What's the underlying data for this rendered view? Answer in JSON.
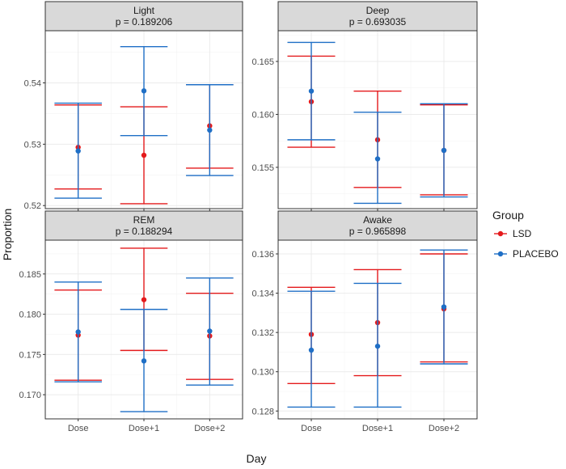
{
  "chart_data": {
    "type": "errorbar",
    "xlabel": "Day",
    "ylabel": "Proportion",
    "categories": [
      "Dose",
      "Dose+1",
      "Dose+2"
    ],
    "legend": {
      "title": "Group",
      "position": "right",
      "entries": [
        {
          "name": "LSD",
          "color": "#e41a1c"
        },
        {
          "name": "PLACEBO",
          "color": "#1f6fc6"
        }
      ]
    },
    "panels": [
      {
        "name": "Light",
        "pvalue_label": "p = 0.189206",
        "ylim": [
          0.5195,
          0.5485
        ],
        "yticks": [
          0.52,
          0.53,
          0.54
        ],
        "ytick_labels": [
          "0.52",
          "0.53",
          "0.54"
        ],
        "series": [
          {
            "name": "LSD",
            "mean": [
              0.5295,
              0.5282,
              0.533
            ],
            "lower": [
              0.5227,
              0.5203,
              0.5261
            ],
            "upper": [
              0.5364,
              0.5361,
              0.5397
            ]
          },
          {
            "name": "PLACEBO",
            "mean": [
              0.5289,
              0.5387,
              0.5323
            ],
            "lower": [
              0.5212,
              0.5314,
              0.5249
            ],
            "upper": [
              0.5367,
              0.5459,
              0.5397
            ]
          }
        ]
      },
      {
        "name": "Deep",
        "pvalue_label": "p = 0.693035",
        "ylim": [
          0.1511,
          0.1679
        ],
        "yticks": [
          0.155,
          0.16,
          0.165
        ],
        "ytick_labels": [
          "0.155",
          "0.160",
          "0.165"
        ],
        "series": [
          {
            "name": "LSD",
            "mean": [
              0.1612,
              0.1576,
              0.1566
            ],
            "lower": [
              0.1569,
              0.1531,
              0.1524
            ],
            "upper": [
              0.1655,
              0.1622,
              0.1609
            ]
          },
          {
            "name": "PLACEBO",
            "mean": [
              0.1622,
              0.1558,
              0.1566
            ],
            "lower": [
              0.1576,
              0.1516,
              0.1522
            ],
            "upper": [
              0.1668,
              0.1602,
              0.161
            ]
          }
        ]
      },
      {
        "name": "REM",
        "pvalue_label": "p = 0.188294",
        "ylim": [
          0.167,
          0.1892
        ],
        "yticks": [
          0.17,
          0.175,
          0.18,
          0.185
        ],
        "ytick_labels": [
          "0.170",
          "0.175",
          "0.180",
          "0.185"
        ],
        "series": [
          {
            "name": "LSD",
            "mean": [
              0.1774,
              0.1818,
              0.1773
            ],
            "lower": [
              0.1718,
              0.1755,
              0.1719
            ],
            "upper": [
              0.183,
              0.1882,
              0.1826
            ]
          },
          {
            "name": "PLACEBO",
            "mean": [
              0.1778,
              0.1742,
              0.1779
            ],
            "lower": [
              0.1716,
              0.1679,
              0.1712
            ],
            "upper": [
              0.184,
              0.1806,
              0.1845
            ]
          }
        ]
      },
      {
        "name": "Awake",
        "pvalue_label": "p = 0.965898",
        "ylim": [
          0.1276,
          0.1367
        ],
        "yticks": [
          0.128,
          0.13,
          0.132,
          0.134,
          0.136
        ],
        "ytick_labels": [
          "0.128",
          "0.130",
          "0.132",
          "0.134",
          "0.136"
        ],
        "series": [
          {
            "name": "LSD",
            "mean": [
              0.1319,
              0.1325,
              0.1332
            ],
            "lower": [
              0.1294,
              0.1298,
              0.1305
            ],
            "upper": [
              0.1343,
              0.1352,
              0.136
            ]
          },
          {
            "name": "PLACEBO",
            "mean": [
              0.1311,
              0.1313,
              0.1333
            ],
            "lower": [
              0.1282,
              0.1282,
              0.1304
            ],
            "upper": [
              0.1341,
              0.1345,
              0.1362
            ]
          }
        ]
      }
    ]
  }
}
